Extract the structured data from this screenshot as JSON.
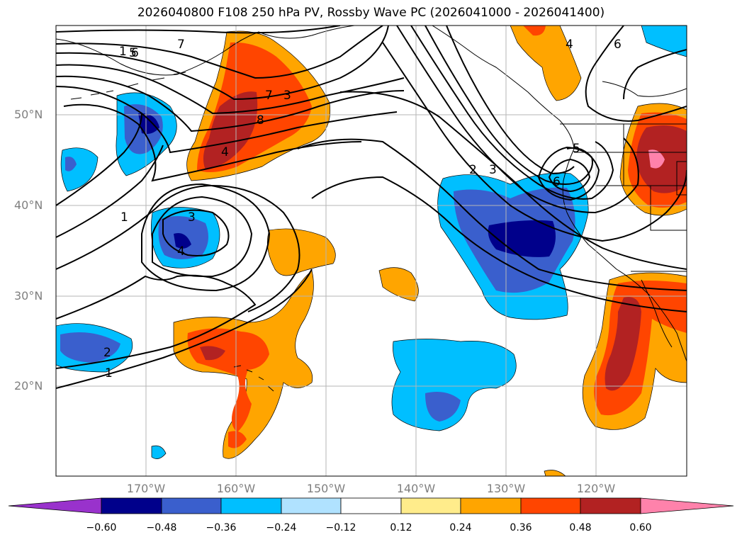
{
  "title": "2026040800 F108 250 hPa PV, Rossby Wave PC (2026041000 - 2026041400)",
  "map": {
    "lat_labels": [
      {
        "lat": 50,
        "text": "50°N"
      },
      {
        "lat": 40,
        "text": "40°N"
      },
      {
        "lat": 30,
        "text": "30°N"
      },
      {
        "lat": 20,
        "text": "20°N"
      }
    ],
    "lon_labels": [
      {
        "lon": -170,
        "text": "170°W"
      },
      {
        "lon": -160,
        "text": "160°W"
      },
      {
        "lon": -150,
        "text": "150°W"
      },
      {
        "lon": -140,
        "text": "140°W"
      },
      {
        "lon": -130,
        "text": "130°W"
      },
      {
        "lon": -120,
        "text": "120°W"
      }
    ],
    "contour_labels": [
      "1",
      "1",
      "1",
      "2",
      "3",
      "4",
      "5",
      "6",
      "7",
      "8",
      "3",
      "4",
      "2",
      "3",
      "4",
      "6",
      "5",
      "6",
      "7"
    ]
  },
  "colorbar": {
    "colors": [
      "#9932cc",
      "#00008b",
      "#3a5fcd",
      "#00bfff",
      "#b0e2ff",
      "#ffffff",
      "#ffec8b",
      "#ffa500",
      "#ff4500",
      "#b22222",
      "#ff82ab"
    ],
    "ticks": [
      "−0.60",
      "−0.48",
      "−0.36",
      "−0.24",
      "−0.12",
      "0.12",
      "0.24",
      "0.36",
      "0.48",
      "0.60"
    ]
  }
}
